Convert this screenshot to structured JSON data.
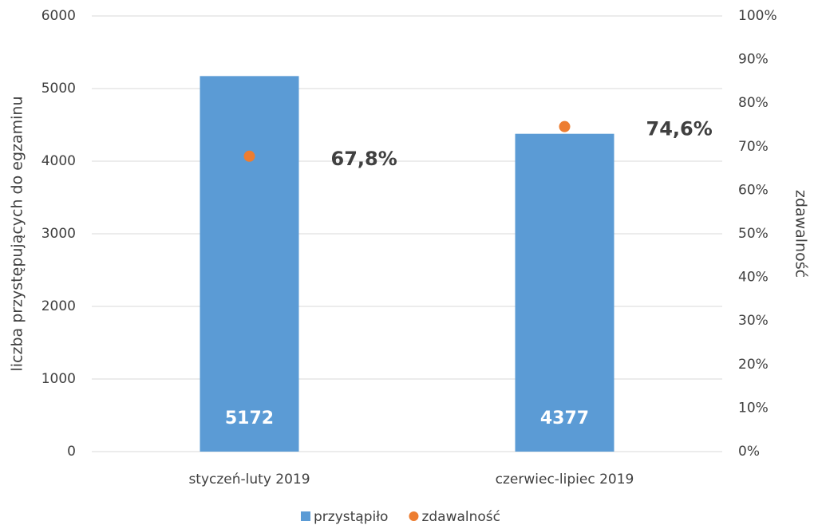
{
  "chart_data": {
    "type": "bar",
    "categories": [
      "styczeń-luty 2019",
      "czerwiec-lipiec 2019"
    ],
    "series": [
      {
        "name": "przystąpiło",
        "type": "bar",
        "color": "#5b9bd5",
        "values": [
          5172,
          4377
        ]
      },
      {
        "name": "zdawalność",
        "type": "scatter",
        "axis": "y2",
        "color": "#ed7d31",
        "values": [
          67.8,
          74.6
        ],
        "value_labels": [
          "67,8%",
          "74,6%"
        ]
      }
    ],
    "ylabel": "liczba przystępujących do egzaminu",
    "y2label": "zdawalność",
    "ylim": [
      0,
      6000
    ],
    "yticks": [
      0,
      1000,
      2000,
      3000,
      4000,
      5000,
      6000
    ],
    "y2lim": [
      0,
      100
    ],
    "y2ticks": [
      {
        "value": 0,
        "label": "0%"
      },
      {
        "value": 10,
        "label": "10%"
      },
      {
        "value": 20,
        "label": "20%"
      },
      {
        "value": 30,
        "label": "30%"
      },
      {
        "value": 40,
        "label": "40%"
      },
      {
        "value": 50,
        "label": "50%"
      },
      {
        "value": 60,
        "label": "60%"
      },
      {
        "value": 70,
        "label": "70%"
      },
      {
        "value": 80,
        "label": "80%"
      },
      {
        "value": 90,
        "label": "90%"
      },
      {
        "value": 100,
        "label": "100%"
      }
    ],
    "grid": true,
    "legend": "bottom"
  }
}
